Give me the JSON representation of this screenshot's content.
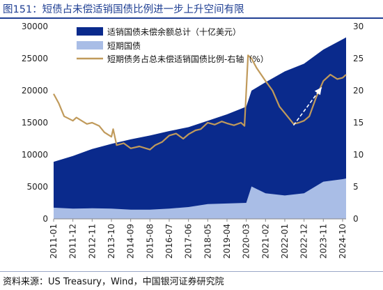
{
  "figure": {
    "title": "图151：短债占未偿适销国债比例进一步上升空间有限",
    "source": "资料来源：US Treasury，Wind，中国银河证券研究院"
  },
  "colors": {
    "title": "#1f3f93",
    "total_area": "#0a2a8c",
    "short_area": "#a9bde6",
    "ratio_line": "#c09a5b",
    "arrow": "#ffffff"
  },
  "chart_data": {
    "type": "area",
    "title": "",
    "x_tick_labels": [
      "2011-01",
      "2011-12",
      "2012-11",
      "2013-10",
      "2014-09",
      "2015-08",
      "2016-07",
      "2017-06",
      "2018-05",
      "2019-04",
      "2020-03",
      "2021-02",
      "2022-01",
      "2022-12",
      "2023-11",
      "2024-10"
    ],
    "x": [
      "2011-01",
      "2011-12",
      "2012-11",
      "2013-10",
      "2014-09",
      "2015-08",
      "2016-07",
      "2017-06",
      "2018-05",
      "2019-04",
      "2020-03",
      "2020-06",
      "2021-02",
      "2022-01",
      "2022-12",
      "2023-11",
      "2024-10",
      "2024-12"
    ],
    "y_left": {
      "ylim": [
        0,
        30000
      ],
      "ticks": [
        0,
        5000,
        10000,
        15000,
        20000,
        25000,
        30000
      ]
    },
    "y_right": {
      "ylim": [
        0,
        30
      ],
      "ticks": [
        0,
        5,
        10,
        15,
        20,
        25,
        30
      ]
    },
    "grid": false,
    "legend_position": "top-center",
    "series": [
      {
        "name": "适销国债未偿余额总计（十亿美元）",
        "kind": "area",
        "axis": "left",
        "values": [
          8900,
          9800,
          10900,
          11700,
          12400,
          13000,
          13700,
          14300,
          15300,
          16300,
          17500,
          20000,
          21300,
          23000,
          24200,
          26400,
          28000,
          28300
        ]
      },
      {
        "name": "短期国债",
        "kind": "area",
        "axis": "left",
        "values": [
          1750,
          1600,
          1650,
          1600,
          1450,
          1450,
          1600,
          1850,
          2300,
          2400,
          2500,
          5050,
          4000,
          3650,
          4000,
          5800,
          6200,
          6300
        ]
      },
      {
        "name": "短期债务占总未偿适销国债比例-右轴（%）",
        "kind": "line",
        "axis": "right",
        "x": [
          "2011-01",
          "2011-04",
          "2011-07",
          "2011-12",
          "2012-02",
          "2012-05",
          "2012-08",
          "2012-11",
          "2013-03",
          "2013-06",
          "2013-10",
          "2013-11",
          "2014-01",
          "2014-05",
          "2014-09",
          "2015-02",
          "2015-08",
          "2015-11",
          "2016-03",
          "2016-07",
          "2016-11",
          "2017-03",
          "2017-06",
          "2017-10",
          "2018-01",
          "2018-05",
          "2018-09",
          "2019-01",
          "2019-04",
          "2019-08",
          "2019-12",
          "2020-02",
          "2020-04",
          "2020-06",
          "2020-09",
          "2021-02",
          "2021-06",
          "2021-10",
          "2022-01",
          "2022-06",
          "2022-09",
          "2022-12",
          "2023-03",
          "2023-07",
          "2023-11",
          "2024-03",
          "2024-07",
          "2024-10",
          "2024-12"
        ],
        "values": [
          19.5,
          18.0,
          16.0,
          15.3,
          15.8,
          15.3,
          14.8,
          15.0,
          14.5,
          13.5,
          12.8,
          14.0,
          11.5,
          11.8,
          11.0,
          11.3,
          10.8,
          11.5,
          12.0,
          13.0,
          13.3,
          12.5,
          13.2,
          13.8,
          14.0,
          15.0,
          14.7,
          15.2,
          14.9,
          14.6,
          15.0,
          14.5,
          25.5,
          25.0,
          23.5,
          21.5,
          20.0,
          17.5,
          16.5,
          14.8,
          15.0,
          15.3,
          16.0,
          19.0,
          21.5,
          22.5,
          21.8,
          22.0,
          22.5
        ]
      }
    ],
    "annotations": [
      {
        "type": "arrow",
        "from": [
          "2022-06",
          14.6
        ],
        "to": [
          "2023-10",
          20.5
        ]
      }
    ]
  }
}
